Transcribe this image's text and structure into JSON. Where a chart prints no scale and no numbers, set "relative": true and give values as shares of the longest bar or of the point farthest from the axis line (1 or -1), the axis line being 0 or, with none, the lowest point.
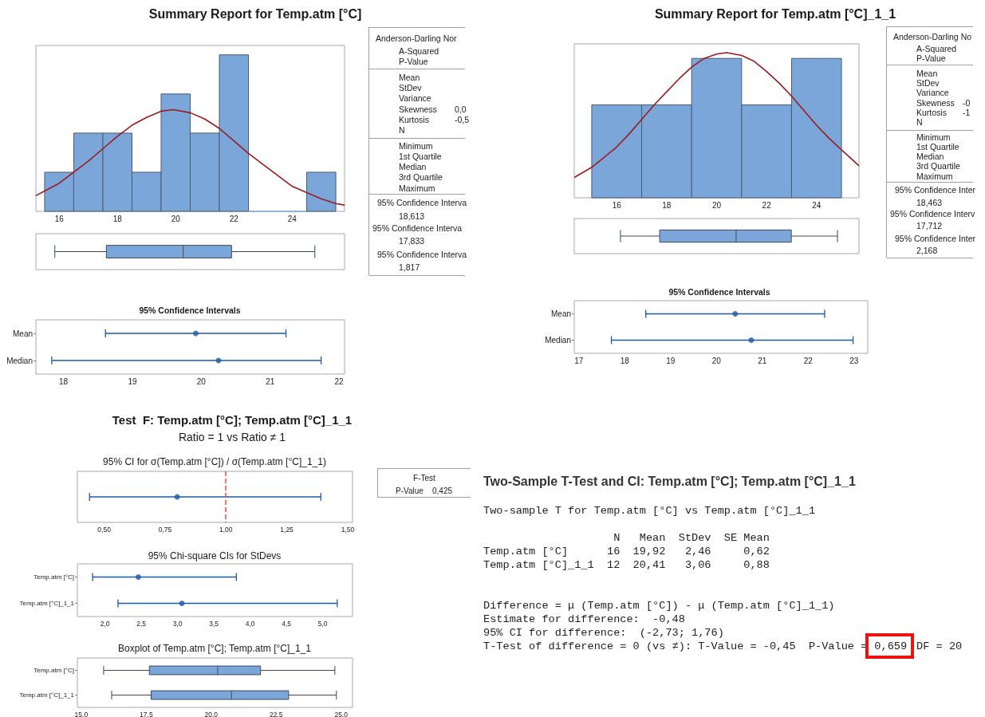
{
  "chart_data": [
    {
      "type": "histogram",
      "title": "Summary Report for Temp.atm [°C]",
      "relative": true,
      "bins": [
        15.5,
        16.5,
        17.5,
        18.5,
        19.5,
        20.5,
        21.5,
        22.5,
        23.5,
        24.5,
        25.5
      ],
      "xlim": [
        15.2,
        25.8
      ],
      "xticks": [
        16,
        18,
        20,
        22,
        24
      ],
      "series": [
        {
          "type": "histogram",
          "color": "#7ba6da",
          "values": [
            0.25,
            0.5,
            0.5,
            0.25,
            0.75,
            0.5,
            1,
            0,
            0,
            0.25
          ]
        },
        {
          "type": "line",
          "color": "#9b1c20",
          "marker": "none",
          "x": [
            15.2,
            15.5,
            16,
            16.5,
            17,
            17.5,
            18,
            18.5,
            19,
            19.5,
            19.92,
            20.5,
            21,
            21.5,
            22,
            22.5,
            23,
            23.5,
            24,
            24.5,
            25,
            25.5,
            25.8
          ],
          "values": [
            0.1,
            0.13,
            0.18,
            0.25,
            0.32,
            0.4,
            0.48,
            0.55,
            0.6,
            0.64,
            0.65,
            0.63,
            0.59,
            0.53,
            0.45,
            0.37,
            0.3,
            0.23,
            0.16,
            0.12,
            0.08,
            0.05,
            0.04
          ]
        }
      ]
    },
    {
      "type": "box",
      "orientation": "horizontal",
      "categories": [
        null
      ],
      "boxes": [
        {
          "low": 15.85,
          "q1": 17.62,
          "median": 20.26,
          "q3": 21.92,
          "high": 24.78
        }
      ],
      "color": "#7ba6da",
      "xlim": [
        15.2,
        25.8
      ],
      "tick_labels": false
    },
    {
      "type": "other",
      "annotations": [
        "Anderson-Darling Nor",
        "A-Squared",
        "P-Value",
        "Mean",
        "StDev",
        "Variance",
        "Skewness",
        "0,0",
        "Kurtosis",
        "-0,5",
        "N",
        "Minimum",
        "1st Quartile",
        "Median",
        "3rd Quartile",
        "Maximum",
        "95% Confidence Interva",
        "18,613",
        "95% Confidence Interva",
        "17,833",
        "95% Confidence Interva",
        "1,817"
      ]
    },
    {
      "type": "scatter",
      "orientation": "horizontal",
      "title": "95% Confidence Intervals",
      "categories": [
        "Mean",
        "Median"
      ],
      "values": [
        19.92,
        20.25
      ],
      "errors": [
        [
          18.61,
          21.23
        ],
        [
          17.83,
          21.74
        ]
      ],
      "color": "#1e5aa8",
      "marker": "circle",
      "xlim": [
        17.6,
        22.08
      ],
      "xticks": [
        18,
        19,
        20,
        21,
        22
      ]
    },
    {
      "type": "histogram",
      "title": "Summary Report for Temp.atm [°C]_1_1",
      "relative": true,
      "bins": [
        15,
        17,
        19,
        21,
        23,
        25
      ],
      "xlim": [
        14.3,
        25.7
      ],
      "xticks": [
        16,
        18,
        20,
        22,
        24
      ],
      "series": [
        {
          "type": "histogram",
          "color": "#7ba6da",
          "values": [
            0.64,
            0.64,
            0.96,
            0.64,
            0.96
          ]
        },
        {
          "type": "line",
          "color": "#9b1c20",
          "marker": "none",
          "x": [
            14.3,
            15,
            15.5,
            16,
            16.5,
            17,
            17.5,
            18,
            18.5,
            19,
            19.5,
            20,
            20.41,
            21,
            21.5,
            22,
            22.5,
            23,
            23.5,
            24,
            24.5,
            25,
            25.7
          ],
          "values": [
            0.14,
            0.21,
            0.28,
            0.35,
            0.44,
            0.54,
            0.64,
            0.73,
            0.82,
            0.9,
            0.96,
            0.99,
            1,
            0.98,
            0.94,
            0.87,
            0.79,
            0.7,
            0.6,
            0.5,
            0.41,
            0.33,
            0.22
          ]
        }
      ]
    },
    {
      "type": "box",
      "orientation": "horizontal",
      "categories": [
        null
      ],
      "boxes": [
        {
          "low": 16.15,
          "q1": 17.72,
          "median": 20.78,
          "q3": 22.99,
          "high": 24.84
        }
      ],
      "color": "#7ba6da",
      "xlim": [
        14.3,
        25.7
      ],
      "tick_labels": false
    },
    {
      "type": "other",
      "annotations": [
        "Anderson-Darling No",
        "A-Squared",
        "P-Value",
        "Mean",
        "StDev",
        "Variance",
        "Skewness",
        "-0",
        "Kurtosis",
        "-1",
        "N",
        "Minimum",
        "1st Quartile",
        "Median",
        "3rd Quartile",
        "Maximum",
        "95% Confidence Inter",
        "18,463",
        "95% Confidence Interv",
        "17,712",
        "95% Confidence Inter",
        "2,168"
      ]
    },
    {
      "type": "scatter",
      "orientation": "horizontal",
      "title": "95% Confidence Intervals",
      "categories": [
        "Mean",
        "Median"
      ],
      "values": [
        20.41,
        20.76
      ],
      "errors": [
        [
          18.46,
          22.36
        ],
        [
          17.71,
          22.98
        ]
      ],
      "color": "#1e5aa8",
      "marker": "circle",
      "xlim": [
        16.9,
        23.3
      ],
      "xticks": [
        17,
        18,
        19,
        20,
        21,
        22,
        23
      ]
    },
    {
      "type": "other",
      "title": "Test  F: Temp.atm [°C]; Temp.atm [°C]_1_1",
      "subtitle": "Ratio = 1 vs Ratio ≠ 1"
    },
    {
      "type": "scatter",
      "orientation": "horizontal",
      "title": "95% CI for σ(Temp.atm [°C]) / σ(Temp.atm [°C]_1_1)",
      "categories": [
        null
      ],
      "values": [
        0.8
      ],
      "errors": [
        [
          0.44,
          1.39
        ]
      ],
      "color": "#1e5aa8",
      "marker": "circle",
      "xlim": [
        0.39,
        1.52
      ],
      "xticks": [
        {
          "value": 0.5,
          "label": "0,50"
        },
        {
          "value": 0.75,
          "label": "0,75"
        },
        {
          "value": 1,
          "label": "1,00"
        },
        {
          "value": 1.25,
          "label": "1,25"
        },
        {
          "value": 1.5,
          "label": "1,50"
        }
      ],
      "ref_lines": [
        {
          "axis": "x",
          "value": 1,
          "color": "#e0484f",
          "line_style": "dashed"
        }
      ],
      "tick_labels": "x"
    },
    {
      "type": "other",
      "annotations": [
        "F-Test",
        "P-Value",
        "0,425"
      ]
    },
    {
      "type": "scatter",
      "orientation": "horizontal",
      "title": "95% Chi-square CIs for StDevs",
      "categories": [
        "Temp.atm [°C]",
        "Temp.atm [°C]_1_1"
      ],
      "values": [
        2.46,
        3.06
      ],
      "errors": [
        [
          1.83,
          3.81
        ],
        [
          2.18,
          5.2
        ]
      ],
      "color": "#1e5aa8",
      "marker": "circle",
      "xlim": [
        1.62,
        5.41
      ],
      "xticks": [
        {
          "value": 2,
          "label": "2,0"
        },
        {
          "value": 2.5,
          "label": "2,5"
        },
        {
          "value": 3,
          "label": "3,0"
        },
        {
          "value": 3.5,
          "label": "3,5"
        },
        {
          "value": 4,
          "label": "4,0"
        },
        {
          "value": 4.5,
          "label": "4,5"
        },
        {
          "value": 5,
          "label": "5,0"
        }
      ]
    },
    {
      "type": "box",
      "orientation": "horizontal",
      "title": "Boxplot of Temp.atm [°C]; Temp.atm [°C]_1_1",
      "categories": [
        "Temp.atm [°C]",
        "Temp.atm [°C]_1_1"
      ],
      "boxes": [
        {
          "low": 15.86,
          "q1": 17.62,
          "median": 20.25,
          "q3": 21.9,
          "high": 24.76
        },
        {
          "low": 16.17,
          "q1": 17.69,
          "median": 20.78,
          "q3": 22.98,
          "high": 24.82
        }
      ],
      "color": "#7ba6da",
      "xlim": [
        14.85,
        25.44
      ],
      "xticks": [
        {
          "value": 15,
          "label": "15,0"
        },
        {
          "value": 17.5,
          "label": "17,5"
        },
        {
          "value": 20,
          "label": "20,0"
        },
        {
          "value": 22.5,
          "label": "22,5"
        },
        {
          "value": 25,
          "label": "25,0"
        }
      ]
    },
    {
      "type": "other",
      "title": "Two-Sample T-Test and CI: Temp.atm [°C]; Temp.atm [°C]_1_1",
      "annotations": [
        "Two-sample T for Temp.atm [°C] vs Temp.atm [°C]_1_1",
        "                    N   Mean  StDev  SE Mean",
        "Temp.atm [°C]      16  19,92   2,46     0,62",
        "Temp.atm [°C]_1_1  12  20,41   3,06     0,88",
        "Difference = μ (Temp.atm [°C]) - μ (Temp.atm [°C]_1_1)",
        "Estimate for difference:  -0,48",
        "95% CI for difference:  (-2,73; 1,76)",
        "T-Test of difference = 0 (vs ≠): T-Value = -0,45  P-Value =",
        "0,659",
        "DF = 20"
      ]
    }
  ]
}
